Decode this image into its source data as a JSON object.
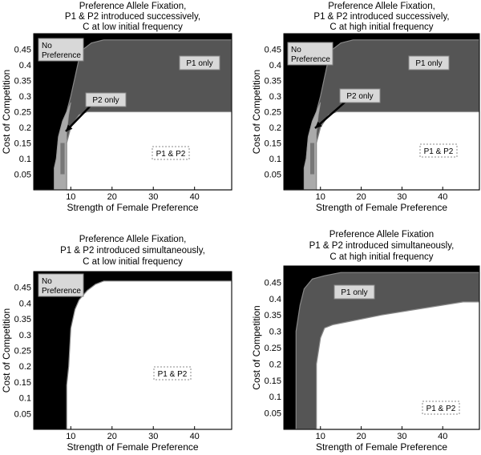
{
  "charts": [
    {
      "id": "tl",
      "title_lines": [
        "Preference Allele Fixation,",
        "P1 & P2 introduced successively,",
        "C at low initial frequency"
      ],
      "xlabel": "Strength of Female Preference",
      "ylabel": "Cost of Competition",
      "labels": {
        "no_pref": [
          "No",
          "Preference"
        ],
        "p1": "P1 only",
        "p2": "P2 only",
        "p1p2": "P1 & P2"
      }
    },
    {
      "id": "tr",
      "title_lines": [
        "Preference Allele Fixation,",
        "P1 & P2 introduced successively,",
        "C at high initial frequency"
      ],
      "xlabel": "Strength of Female Preference",
      "ylabel": "Cost of Competition",
      "labels": {
        "no_pref": [
          "No",
          "Preference"
        ],
        "p1": "P1 only",
        "p2": "P2 only",
        "p1p2": "P1 & P2"
      }
    },
    {
      "id": "bl",
      "title_lines": [
        "Preference Allele Fixation,",
        "P1 & P2 introduced simultaneously,",
        "C at low initial frequency"
      ],
      "xlabel": "Strength of Female Preference",
      "ylabel": "Cost of Competition",
      "labels": {
        "no_pref": [
          "No",
          "Preference"
        ],
        "p1p2": "P1 & P2"
      }
    },
    {
      "id": "br",
      "title_lines": [
        "Preference Allele Fixation",
        "P1 & P2 introduced simultaneously,",
        "C at high initial frequency"
      ],
      "xlabel": "Strength of Female Preference",
      "ylabel": "Cost of Competition",
      "labels": {
        "p1": "P1 only",
        "p1p2": "P1 & P2"
      }
    }
  ],
  "chart_data": [
    {
      "type": "heatmap",
      "title": "Preference Allele Fixation, P1 & P2 introduced successively, C at low initial frequency",
      "xlabel": "Strength of Female Preference",
      "ylabel": "Cost of Competition",
      "xlim": [
        1,
        49
      ],
      "ylim": [
        0,
        0.5
      ],
      "xticks": [
        10,
        20,
        30,
        40
      ],
      "yticks": [
        0.05,
        0.1,
        0.15,
        0.2,
        0.25,
        0.3,
        0.35,
        0.4,
        0.45
      ],
      "regions": [
        "No Preference",
        "P1 only",
        "P2 only",
        "P1 & P2"
      ],
      "colors": {
        "No Preference": "#000000",
        "P1 only": "#555555",
        "P2 only": "#aaaaaa",
        "P1 & P2": "#ffffff"
      },
      "boundaries": {
        "none_upper": [
          [
            1,
            0
          ],
          [
            6,
            0
          ],
          [
            6,
            0.07
          ],
          [
            6.5,
            0.1
          ],
          [
            7,
            0.17
          ],
          [
            8,
            0.22
          ],
          [
            9,
            0.25
          ],
          [
            10,
            0.3
          ],
          [
            11,
            0.36
          ],
          [
            12,
            0.42
          ],
          [
            13,
            0.45
          ],
          [
            15,
            0.47
          ],
          [
            18,
            0.48
          ],
          [
            49,
            0.48
          ]
        ],
        "p1_lower": [
          [
            9,
            0.18
          ],
          [
            10,
            0.22
          ],
          [
            12,
            0.24
          ],
          [
            14,
            0.25
          ],
          [
            49,
            0.25
          ]
        ],
        "p1p2_left": [
          [
            9,
            0
          ],
          [
            9,
            0.15
          ],
          [
            10,
            0.2
          ],
          [
            12,
            0.24
          ],
          [
            14,
            0.25
          ],
          [
            49,
            0.25
          ]
        ]
      }
    },
    {
      "type": "heatmap",
      "title": "Preference Allele Fixation, P1 & P2 introduced successively, C at high initial frequency",
      "xlabel": "Strength of Female Preference",
      "ylabel": "Cost of Competition",
      "xlim": [
        1,
        49
      ],
      "ylim": [
        0,
        0.5
      ],
      "xticks": [
        10,
        20,
        30,
        40
      ],
      "yticks": [
        0.05,
        0.1,
        0.15,
        0.2,
        0.25,
        0.3,
        0.35,
        0.4,
        0.45
      ],
      "regions": [
        "No Preference",
        "P1 only",
        "P2 only",
        "P1 & P2"
      ],
      "colors": {
        "No Preference": "#000000",
        "P1 only": "#555555",
        "P2 only": "#aaaaaa",
        "P1 & P2": "#ffffff"
      },
      "boundaries": {
        "none_upper": [
          [
            1,
            0
          ],
          [
            6,
            0
          ],
          [
            6,
            0.07
          ],
          [
            6.5,
            0.1
          ],
          [
            7,
            0.17
          ],
          [
            8,
            0.22
          ],
          [
            9,
            0.25
          ],
          [
            10,
            0.3
          ],
          [
            11,
            0.36
          ],
          [
            12,
            0.42
          ],
          [
            13,
            0.45
          ],
          [
            15,
            0.47
          ],
          [
            18,
            0.48
          ],
          [
            49,
            0.48
          ]
        ],
        "p1_lower": [
          [
            9,
            0.18
          ],
          [
            10,
            0.22
          ],
          [
            12,
            0.24
          ],
          [
            14,
            0.25
          ],
          [
            49,
            0.25
          ]
        ],
        "p1p2_left": [
          [
            9,
            0
          ],
          [
            9,
            0.15
          ],
          [
            10,
            0.2
          ],
          [
            12,
            0.24
          ],
          [
            14,
            0.25
          ],
          [
            49,
            0.25
          ]
        ]
      }
    },
    {
      "type": "heatmap",
      "title": "Preference Allele Fixation, P1 & P2 introduced simultaneously, C at low initial frequency",
      "xlabel": "Strength of Female Preference",
      "ylabel": "Cost of Competition",
      "xlim": [
        1,
        49
      ],
      "ylim": [
        0,
        0.5
      ],
      "xticks": [
        10,
        20,
        30,
        40
      ],
      "yticks": [
        0.05,
        0.1,
        0.15,
        0.2,
        0.25,
        0.3,
        0.35,
        0.4,
        0.45
      ],
      "regions": [
        "No Preference",
        "P1 & P2"
      ],
      "colors": {
        "No Preference": "#000000",
        "P1 & P2": "#ffffff"
      },
      "boundaries": {
        "p1p2_left": [
          [
            9,
            0
          ],
          [
            9,
            0.14
          ],
          [
            9.5,
            0.2
          ],
          [
            10,
            0.32
          ],
          [
            11,
            0.38
          ],
          [
            12,
            0.41
          ],
          [
            14,
            0.44
          ],
          [
            16,
            0.46
          ],
          [
            18,
            0.47
          ],
          [
            49,
            0.47
          ]
        ]
      }
    },
    {
      "type": "heatmap",
      "title": "Preference Allele Fixation P1 & P2 introduced simultaneously, C at high initial frequency",
      "xlabel": "Strength of Female Preference",
      "ylabel": "Cost of Competition",
      "xlim": [
        1,
        49
      ],
      "ylim": [
        0,
        0.5
      ],
      "xticks": [
        10,
        20,
        30,
        40
      ],
      "yticks": [
        0.05,
        0.1,
        0.15,
        0.2,
        0.25,
        0.3,
        0.35,
        0.4,
        0.45
      ],
      "regions": [
        "No Preference",
        "P1 only",
        "P1 & P2"
      ],
      "colors": {
        "No Preference": "#000000",
        "P1 only": "#555555",
        "P1 & P2": "#ffffff"
      },
      "boundaries": {
        "none_upper": [
          [
            1,
            0
          ],
          [
            4,
            0
          ],
          [
            4,
            0.3
          ],
          [
            5,
            0.38
          ],
          [
            6,
            0.43
          ],
          [
            8,
            0.46
          ],
          [
            11,
            0.47
          ],
          [
            15,
            0.48
          ],
          [
            49,
            0.48
          ]
        ],
        "p1p2_left": [
          [
            9,
            0
          ],
          [
            9,
            0.2
          ],
          [
            10,
            0.28
          ],
          [
            11,
            0.31
          ],
          [
            13,
            0.32
          ],
          [
            17,
            0.33
          ],
          [
            25,
            0.35
          ],
          [
            35,
            0.37
          ],
          [
            45,
            0.39
          ],
          [
            49,
            0.39
          ]
        ]
      }
    }
  ]
}
